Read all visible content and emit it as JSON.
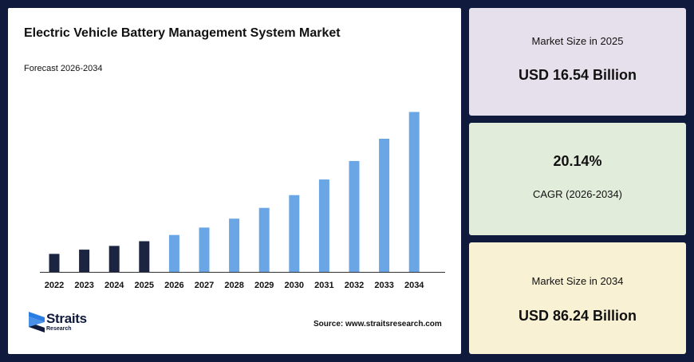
{
  "chart_data": {
    "type": "bar",
    "title": "Electric Vehicle Battery Management System Market",
    "subtitle": "Forecast 2026-2034",
    "categories": [
      "2022",
      "2023",
      "2024",
      "2025",
      "2026",
      "2027",
      "2028",
      "2029",
      "2030",
      "2031",
      "2032",
      "2033",
      "2034"
    ],
    "values": [
      9.7,
      12.0,
      14.0,
      16.54,
      19.9,
      23.9,
      28.7,
      34.5,
      41.4,
      49.8,
      59.8,
      71.8,
      86.24
    ],
    "value_unit": "USD Billion",
    "historic_color": "#1b2440",
    "forecast_color": "#6aa6e6",
    "historic_count": 4,
    "ylim": [
      0,
      95
    ],
    "grid": false,
    "legend": false
  },
  "source": "Source: www.straitsresearch.com",
  "logo": {
    "name": "Straits",
    "sub": "Research"
  },
  "stats": {
    "market_2025": {
      "label": "Market Size in 2025",
      "value": "USD 16.54 Billion"
    },
    "cagr": {
      "value": "20.14%",
      "label": "CAGR (2026-2034)"
    },
    "market_2034": {
      "label": "Market Size in 2034",
      "value": "USD 86.24 Billion"
    }
  }
}
